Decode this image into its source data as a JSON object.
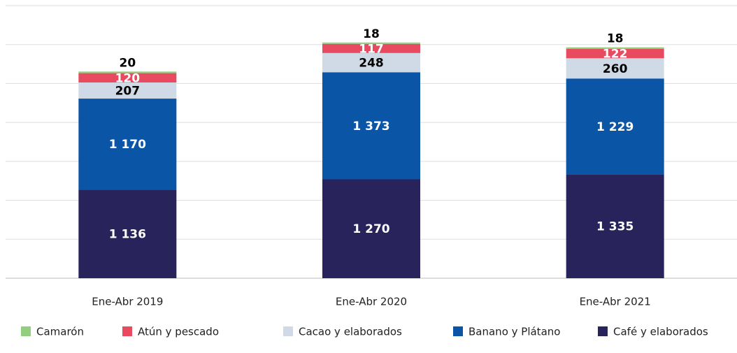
{
  "chart_data": {
    "type": "stacked_bar",
    "categories": [
      "Ene-Abr 2019",
      "Ene-Abr 2020",
      "Ene-Abr 2021"
    ],
    "series": [
      {
        "name": "Café y elaborados",
        "color": "#28235a",
        "values": [
          1136,
          1270,
          1335
        ],
        "value_labels": [
          "1 136",
          "1 270",
          "1 335"
        ]
      },
      {
        "name": "Banano y Plátano",
        "color": "#0a55a6",
        "values": [
          1170,
          1373,
          1229
        ],
        "value_labels": [
          "1 170",
          "1 373",
          "1 229"
        ]
      },
      {
        "name": "Cacao y elaborados",
        "color": "#cfdae6",
        "values": [
          207,
          248,
          260
        ]
      },
      {
        "name": "Atún y pescado",
        "color": "#e84a5f",
        "values": [
          120,
          117,
          122
        ]
      },
      {
        "name": "Camarón",
        "color": "#8fcf7f",
        "values": [
          20,
          18,
          18
        ]
      }
    ],
    "ylim": [
      0,
      3500
    ],
    "yticks": [
      0,
      500,
      1000,
      1500,
      2000,
      2500,
      3000,
      3500
    ],
    "grid": true
  }
}
